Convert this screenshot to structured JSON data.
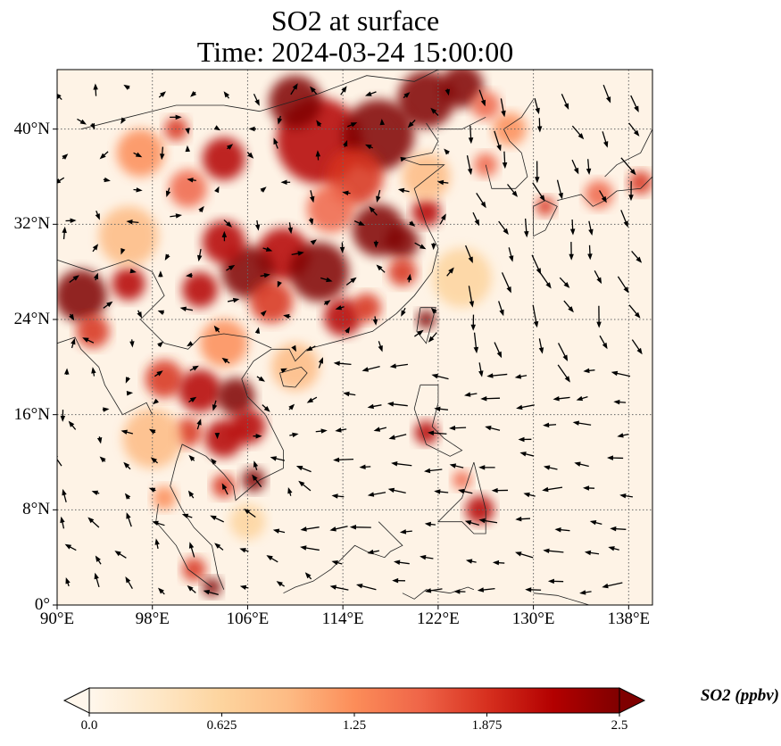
{
  "title": {
    "line1": "SO2 at surface",
    "line2": "Time: 2024-03-24 15:00:00"
  },
  "map": {
    "lon_range": [
      90,
      140
    ],
    "lat_range": [
      0,
      45
    ],
    "gridlines": "dotted",
    "lat_ticks": [
      {
        "value": 0,
        "label": "0°"
      },
      {
        "value": 8,
        "label": "8°N"
      },
      {
        "value": 16,
        "label": "16°N"
      },
      {
        "value": 24,
        "label": "24°N"
      },
      {
        "value": 32,
        "label": "32°N"
      },
      {
        "value": 40,
        "label": "40°N"
      }
    ],
    "lon_ticks": [
      {
        "value": 90,
        "label": "90°E"
      },
      {
        "value": 98,
        "label": "98°E"
      },
      {
        "value": 106,
        "label": "106°E"
      },
      {
        "value": 114,
        "label": "114°E"
      },
      {
        "value": 122,
        "label": "122°E"
      },
      {
        "value": 130,
        "label": "130°E"
      },
      {
        "value": 138,
        "label": "138°E"
      }
    ],
    "field": "SO2",
    "overlay": "wind vectors",
    "colormap": "OrRd"
  },
  "colorbar": {
    "label": "SO2 (ppbv)",
    "min": 0.0,
    "max": 2.5,
    "extend": "both",
    "colors": [
      "#fff7ec",
      "#fee8c8",
      "#fdd49e",
      "#fdbb84",
      "#fc8d59",
      "#ef6548",
      "#d7301f",
      "#b30000",
      "#7f0000"
    ],
    "ticks": [
      {
        "value": 0.0,
        "label": "0.0"
      },
      {
        "value": 0.625,
        "label": "0.625"
      },
      {
        "value": 1.25,
        "label": "1.25"
      },
      {
        "value": 1.875,
        "label": "1.875"
      },
      {
        "value": 2.5,
        "label": "2.5"
      }
    ]
  }
}
